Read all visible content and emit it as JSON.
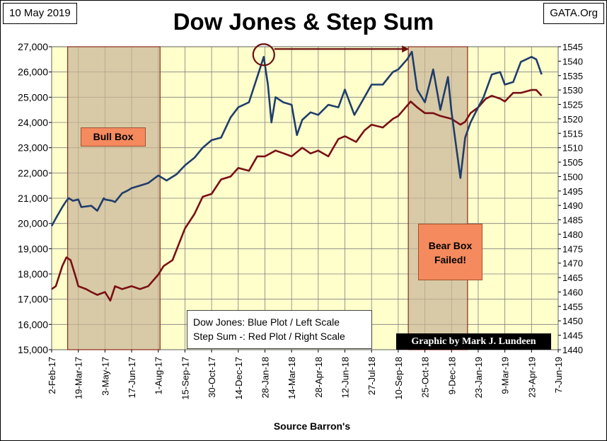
{
  "header": {
    "date_tag": "10 May 2019",
    "source_tag": "GATA.Org",
    "title": "Dow Jones & Step Sum"
  },
  "legend": {
    "line1": "Dow Jones: Blue Plot / Left Scale",
    "line2": "Step Sum -: Red Plot / Right Scale"
  },
  "credit": "Graphic by Mark J. Lundeen",
  "source_note": "Source Barron's",
  "boxes": {
    "bull_label": "Bull Box",
    "bear_label_line1": "Bear Box",
    "bear_label_line2": "Failed!"
  },
  "colors": {
    "plot_bg": "#ffffcc",
    "dow_line": "#1f3d6b",
    "step_line": "#7a0f14",
    "box_fill": "#c8b496",
    "box_border": "#8b2a1a",
    "label_fill": "#f58a5e"
  },
  "chart_data": {
    "type": "line",
    "title": "Dow Jones & Step Sum",
    "xlabel": "Source Barron's",
    "x_ticks": [
      "2-Feb-17",
      "19-Mar-17",
      "3-May-17",
      "17-Jun-17",
      "1-Aug-17",
      "15-Sep-17",
      "30-Oct-17",
      "14-Dec-17",
      "28-Jan-18",
      "14-Mar-18",
      "28-Apr-18",
      "12-Jun-18",
      "27-Jul-18",
      "10-Sep-18",
      "25-Oct-18",
      "9-Dec-18",
      "23-Jan-19",
      "9-Mar-19",
      "23-Apr-19",
      "7-Jun-19"
    ],
    "y_left": {
      "ylim": [
        15000,
        27000
      ],
      "ticks": [
        "15,000",
        "16,000",
        "17,000",
        "18,000",
        "19,000",
        "20,000",
        "21,000",
        "22,000",
        "23,000",
        "24,000",
        "25,000",
        "26,000",
        "27,000"
      ]
    },
    "y_right": {
      "ylim": [
        1440,
        1545
      ],
      "ticks": [
        "1440",
        "1445",
        "1450",
        "1455",
        "1460",
        "1465",
        "1470",
        "1475",
        "1480",
        "1485",
        "1490",
        "1495",
        "1500",
        "1505",
        "1510",
        "1515",
        "1520",
        "1525",
        "1530",
        "1535",
        "1540",
        "1545"
      ]
    },
    "grid": true,
    "series": [
      {
        "axis": "left",
        "points": [
          [
            "2-Feb-17",
            19900
          ],
          [
            "9-Feb-17",
            20200
          ],
          [
            "20-Feb-17",
            20650
          ],
          [
            "27-Feb-17",
            20900
          ],
          [
            "3-Mar-17",
            21000
          ],
          [
            "10-Mar-17",
            20900
          ],
          [
            "19-Mar-17",
            20950
          ],
          [
            "24-Mar-17",
            20650
          ],
          [
            "10-Apr-17",
            20700
          ],
          [
            "20-Apr-17",
            20500
          ],
          [
            "1-May-17",
            21000
          ],
          [
            "3-May-17",
            20950
          ],
          [
            "15-May-17",
            20900
          ],
          [
            "20-May-17",
            20850
          ],
          [
            "1-Jun-17",
            21200
          ],
          [
            "10-Jun-17",
            21300
          ],
          [
            "17-Jun-17",
            21400
          ],
          [
            "1-Jul-17",
            21500
          ],
          [
            "15-Jul-17",
            21600
          ],
          [
            "1-Aug-17",
            21900
          ],
          [
            "15-Aug-17",
            21700
          ],
          [
            "1-Sep-17",
            21950
          ],
          [
            "15-Sep-17",
            22300
          ],
          [
            "1-Oct-17",
            22600
          ],
          [
            "15-Oct-17",
            23000
          ],
          [
            "30-Oct-17",
            23300
          ],
          [
            "15-Nov-17",
            23400
          ],
          [
            "1-Dec-17",
            24200
          ],
          [
            "14-Dec-17",
            24600
          ],
          [
            "1-Jan-18",
            24800
          ],
          [
            "15-Jan-18",
            25800
          ],
          [
            "26-Jan-18",
            26600
          ],
          [
            "2-Feb-18",
            25500
          ],
          [
            "8-Feb-18",
            24000
          ],
          [
            "15-Feb-18",
            25000
          ],
          [
            "28-Feb-18",
            24800
          ],
          [
            "14-Mar-18",
            24700
          ],
          [
            "23-Mar-18",
            23500
          ],
          [
            "1-Apr-18",
            24100
          ],
          [
            "15-Apr-18",
            24400
          ],
          [
            "28-Apr-18",
            24300
          ],
          [
            "15-May-18",
            24700
          ],
          [
            "1-Jun-18",
            24600
          ],
          [
            "12-Jun-18",
            25300
          ],
          [
            "28-Jun-18",
            24300
          ],
          [
            "15-Jul-18",
            25000
          ],
          [
            "27-Jul-18",
            25500
          ],
          [
            "15-Aug-18",
            25500
          ],
          [
            "1-Sep-18",
            26000
          ],
          [
            "10-Sep-18",
            26100
          ],
          [
            "25-Sep-18",
            26500
          ],
          [
            "3-Oct-18",
            26800
          ],
          [
            "12-Oct-18",
            25300
          ],
          [
            "25-Oct-18",
            24800
          ],
          [
            "8-Nov-18",
            26100
          ],
          [
            "20-Nov-18",
            24500
          ],
          [
            "3-Dec-18",
            25800
          ],
          [
            "9-Dec-18",
            24400
          ],
          [
            "24-Dec-18",
            21800
          ],
          [
            "1-Jan-19",
            23400
          ],
          [
            "10-Jan-19",
            24000
          ],
          [
            "23-Jan-19",
            24600
          ],
          [
            "1-Feb-19",
            25000
          ],
          [
            "15-Feb-19",
            25900
          ],
          [
            "1-Mar-19",
            26000
          ],
          [
            "9-Mar-19",
            25500
          ],
          [
            "23-Mar-19",
            25600
          ],
          [
            "5-Apr-19",
            26400
          ],
          [
            "23-Apr-19",
            26600
          ],
          [
            "1-May-19",
            26500
          ],
          [
            "10-May-19",
            25900
          ]
        ]
      },
      {
        "axis": "right",
        "points": [
          [
            "2-Feb-17",
            1461
          ],
          [
            "9-Feb-17",
            1462
          ],
          [
            "20-Feb-17",
            1469
          ],
          [
            "27-Feb-17",
            1472
          ],
          [
            "6-Mar-17",
            1471
          ],
          [
            "15-Mar-17",
            1465
          ],
          [
            "19-Mar-17",
            1462
          ],
          [
            "1-Apr-17",
            1461
          ],
          [
            "10-Apr-17",
            1460
          ],
          [
            "20-Apr-17",
            1459
          ],
          [
            "3-May-17",
            1460
          ],
          [
            "12-May-17",
            1457
          ],
          [
            "20-May-17",
            1462
          ],
          [
            "1-Jun-17",
            1461
          ],
          [
            "17-Jun-17",
            1462
          ],
          [
            "1-Jul-17",
            1461
          ],
          [
            "15-Jul-17",
            1462
          ],
          [
            "1-Aug-17",
            1466
          ],
          [
            "10-Aug-17",
            1469
          ],
          [
            "25-Aug-17",
            1471
          ],
          [
            "15-Sep-17",
            1482
          ],
          [
            "1-Oct-17",
            1487
          ],
          [
            "15-Oct-17",
            1493
          ],
          [
            "30-Oct-17",
            1494
          ],
          [
            "15-Nov-17",
            1499
          ],
          [
            "1-Dec-17",
            1500
          ],
          [
            "14-Dec-17",
            1503
          ],
          [
            "1-Jan-18",
            1502
          ],
          [
            "15-Jan-18",
            1507
          ],
          [
            "28-Jan-18",
            1507
          ],
          [
            "15-Feb-18",
            1509
          ],
          [
            "1-Mar-18",
            1508
          ],
          [
            "14-Mar-18",
            1507
          ],
          [
            "1-Apr-18",
            1510
          ],
          [
            "15-Apr-18",
            1508
          ],
          [
            "28-Apr-18",
            1509
          ],
          [
            "15-May-18",
            1507
          ],
          [
            "1-Jun-18",
            1513
          ],
          [
            "12-Jun-18",
            1514
          ],
          [
            "1-Jul-18",
            1512
          ],
          [
            "15-Jul-18",
            1516
          ],
          [
            "27-Jul-18",
            1518
          ],
          [
            "15-Aug-18",
            1517
          ],
          [
            "1-Sep-18",
            1520
          ],
          [
            "10-Sep-18",
            1521
          ],
          [
            "1-Oct-18",
            1526
          ],
          [
            "12-Oct-18",
            1524
          ],
          [
            "25-Oct-18",
            1522
          ],
          [
            "8-Nov-18",
            1522
          ],
          [
            "20-Nov-18",
            1521
          ],
          [
            "9-Dec-18",
            1520
          ],
          [
            "24-Dec-18",
            1518
          ],
          [
            "1-Jan-19",
            1519
          ],
          [
            "10-Jan-19",
            1522
          ],
          [
            "23-Jan-19",
            1524
          ],
          [
            "5-Feb-19",
            1527
          ],
          [
            "15-Feb-19",
            1528
          ],
          [
            "1-Mar-19",
            1527
          ],
          [
            "9-Mar-19",
            1526
          ],
          [
            "23-Mar-19",
            1529
          ],
          [
            "5-Apr-19",
            1529
          ],
          [
            "23-Apr-19",
            1530
          ],
          [
            "1-May-19",
            1530
          ],
          [
            "10-May-19",
            1528
          ]
        ]
      }
    ],
    "annotations": {
      "bull_box": {
        "label": "Bull Box",
        "from": "1-Mar-17",
        "to": "4-Aug-17"
      },
      "bear_box": {
        "label": "Bear Box Failed!",
        "from": "27-Sep-18",
        "to": "5-Jan-19"
      },
      "circle_at": "26-Jan-18",
      "arrow_to": "3-Oct-18"
    }
  }
}
